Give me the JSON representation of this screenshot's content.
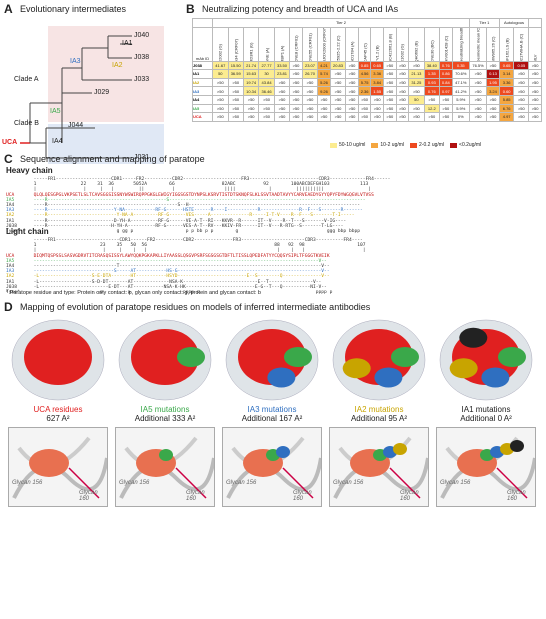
{
  "panels": {
    "a": "A",
    "b": "B",
    "c": "C",
    "d": "D"
  },
  "titles": {
    "a": "Evolutionary intermediates",
    "b": "Neutralizing potency and breadth of UCA and IAs",
    "c": "Sequence alignment and mapping of paratope",
    "d": "Mapping of evolution of paratope residues on models of inferred intermediate antibodies"
  },
  "tree": {
    "j040": "J040",
    "ia1": "IA1",
    "j038": "J038",
    "ia2": "IA2",
    "ia3": "IA3",
    "j033": "J033",
    "j029": "J029",
    "ia5": "IA5",
    "j044": "J044",
    "ia4": "IA4",
    "j031": "J031",
    "uca": "UCA",
    "clade_a": "Clade A",
    "clade_b": "Clade B"
  },
  "table": {
    "tier2": "Tier 2",
    "tier1": "Tier 1",
    "autologous": "Autologous",
    "mab_id": "mAb ID",
    "columns": [
      "X2002 (G)",
      "A34 (CRF07)",
      "RD3R1 (G)",
      "ANE (A)",
      "RBP1 (A)",
      "CNE8 (CRF01)",
      "CNE55 (CRF01)",
      "BJOX2000 (CRF07)",
      "25925-2.22 (C)",
      "AD1784 (A)",
      "CAP45 (C)",
      "TV1.2 (B)",
      "SC422661.8 (B)",
      "X1632 (G)",
      "QH0692 (B)",
      "CNE30 (BC)",
      "HIV001428 (C)",
      "Neutralizing breadth",
      "Geometric mean IC50",
      "MW965.26 (C)",
      "SF162.LS (B)",
      "0217WHA.B (C)",
      "MLV"
    ],
    "rows": [
      {
        "id": "J038",
        "cells": [
          "41.67",
          "15.50",
          "21.74",
          "27.77",
          "33.50",
          ">50",
          "23.07",
          "4.21",
          "20.83",
          ">50",
          "0.85",
          "0.65",
          ">50",
          ">50",
          ">50",
          "38.40",
          "0.76",
          "0.35",
          "76.5%",
          ">50",
          "0.65",
          "0.05",
          ">50"
        ]
      },
      {
        "id": "IA1",
        "cells": [
          "50",
          "36.59",
          "15.63",
          "30",
          "23.81",
          ">50",
          "26.70",
          "5.74",
          ">50",
          ">50",
          "4.56",
          "3.36",
          ">50",
          ">50",
          "21.13",
          "1.35",
          "0.86",
          "70.6%",
          ">50",
          "0.13",
          "3.14",
          ">50",
          ">50"
        ]
      },
      {
        "id": "IA2",
        "cells": [
          ">50",
          ">50",
          "19.74",
          "43.84",
          ">50",
          ">50",
          ">50",
          "5.26",
          ">50",
          ">50",
          "5.75",
          "3.84",
          ">50",
          ">50",
          "31.25",
          "0.93",
          "0.84",
          "47.1%",
          ">50",
          "1.95",
          "3.36",
          ">50",
          ">50"
        ]
      },
      {
        "id": "IA3",
        "cells": [
          ">50",
          ">50",
          "10.34",
          "36.46",
          ">50",
          ">50",
          ">50",
          "9.26",
          ">50",
          ">50",
          "2.36",
          "1.55",
          ">50",
          ">50",
          ">50",
          "0.76",
          "0.97",
          "41.2%",
          ">50",
          "3.24",
          "0.60",
          ">50",
          ">50"
        ]
      },
      {
        "id": "IA4",
        "cells": [
          ">50",
          ">50",
          ">50",
          ">50",
          ">50",
          ">50",
          ">50",
          ">50",
          ">50",
          ">50",
          ">50",
          ">50",
          ">50",
          ">50",
          "50",
          ">50",
          ">50",
          "5.9%",
          ">50",
          ">50",
          "5.85",
          ">50",
          ">50"
        ]
      },
      {
        "id": "IA5",
        "cells": [
          ">50",
          ">50",
          ">50",
          ">50",
          ">50",
          ">50",
          ">50",
          ">50",
          ">50",
          ">50",
          ">50",
          ">50",
          ">50",
          ">50",
          ">50",
          "12.2",
          ">50",
          "5.9%",
          ">50",
          ">50",
          "6.76",
          ">50",
          ">50"
        ]
      },
      {
        "id": "UCA",
        "cells": [
          ">50",
          ">50",
          ">50",
          ">50",
          ">50",
          ">50",
          ">50",
          ">50",
          ">50",
          ">50",
          ">50",
          ">50",
          ">50",
          ">50",
          ">50",
          ">50",
          ">50",
          "0%",
          ">50",
          ">50",
          "4.97",
          ">50",
          ">50"
        ]
      }
    ],
    "legend": [
      "50-10 ug/ml",
      "10-2 ug/ml",
      "2-0.2 ug/ml",
      "<0.2ug/ml"
    ]
  },
  "heavy": {
    "title": "Heavy chain",
    "lines": [
      "          -----FR1--------------------CDR1-----FR2----------CDR2---------------------FR3-------------------------CDR3-------------FR4------",
      "          1                22    31  36       5052A        66                 82ABC          92        100ABCDEFGH103           113",
      "          |                 |     |   |         ||          |                  ||||            |         ||||||||||                |",
      "UCA       QLQLQESGPGLVKPSETLSLTCAVSGGSISSNYWSWIRQPPGKGLEWIGYIGGSGSTDYNPSLKSRVTISTDTSKNQFSLKLSSVTAADTAVYYCARVEAEDYGYYQPYFDYWGQGVLVTVSS",
      "IA5       ----R-------------------------------------------S-----------------------------------------------------------------------",
      "IA4       ----R-----------------------------------------------S--H--------------------------------------------------------------",
      "IA3       ----R------------------------Y-NA-----------RF-G------HSTE------R----I-----------R--------------R--F---S-------R-------",
      "IA2       ----R-------------------------Y-NA-A---------RF-G------VES-----A--------------R-----I-T-V----R--F---S-------T-I-----",
      "IA1       ----R------------------------D-YH-A----------RF-G------VE-A-T--RI---KKVR--R------IT--V----R--T---S-------V-IG----",
      "J038      ----R-----------------------H-YH-A----------RF-G------VES-A-T--RV---KKIV-FR------IT--V---R-RTG--S-------T-LG----",
      "Type*                                   g gg p                   p p bb p p        g                                ggg bbp bbpp"
    ]
  },
  "light": {
    "title": "Light chain",
    "lines": [
      "          -----FR1-----------------------CDR1------FR2----------CDR2--------------FR3-----------------------CDR3----------FR4----",
      "          1                       23    35   50  56                                              88   92  98                   107",
      "          |                        |     |    |   |                                               |    |   |                     |",
      "UCA       DIQMTQSPSSLSASVGDRVTITCRASQSISSYLAWYQQKPGKAPKLLIYAASSLQSGVPSRFSGSGSGTDFTLTISSLQPEDFATYYCQQSYSIPLTFGGGTKVEIK",
      "IA5       -------------------------------------------------------------------------------------------------------V--",
      "IA4       ------------------------------T-------------------------------------------------------------------------V--",
      "IA3       -----------------------------S-----AT-----------HS-G----------------------------------------------------V--",
      "IA2       -L-------------------S-E-DTA-------HT-----------HSYD-------------------------E--S--------Q--------------V--",
      "IA1       -L-------------------S-D-DT-------AT-------------NSA-K---------------------------E--T----------------V--",
      "J038      -L-------------------------E-DT---AT-----------NSA-K-HK-------------------------E-G--T---Q----------NI-V--",
      "Type*                             p         p                   pppp p                                          pppp p"
    ]
  },
  "footnote": "* Paratope residue and type: Protein only contact: p, glycan only contact: g, protein and glycan contact: b",
  "models": [
    {
      "label": "UCA residues",
      "area": "627 A²",
      "color": "#e02020"
    },
    {
      "label": "IA5 mutations",
      "area": "Additional 333 A²",
      "color": "#3aa84a"
    },
    {
      "label": "IA3 mutations",
      "area": "Additional 167 A²",
      "color": "#2f6fc0"
    },
    {
      "label": "IA2 mutations",
      "area": "Additional 95 A²",
      "color": "#c8a400"
    },
    {
      "label": "IA1 mutations",
      "area": "Additional 0 A²",
      "color": "#222222"
    }
  ],
  "glycans": {
    "g1": "Glycan 156",
    "g2": "Glycan 160"
  }
}
